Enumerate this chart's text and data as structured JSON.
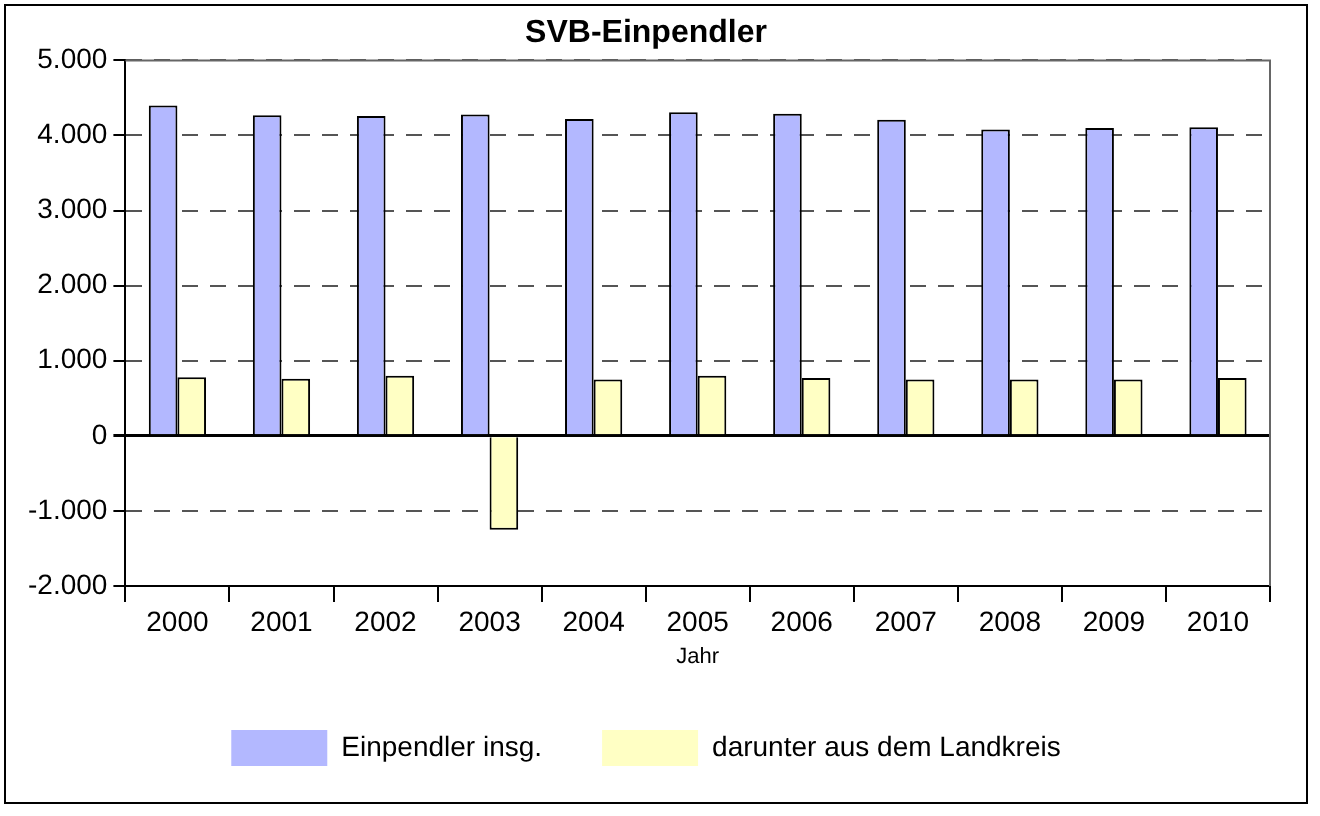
{
  "chart_data": {
    "type": "bar",
    "title": "SVB-Einpendler",
    "xlabel": "Jahr",
    "categories": [
      "2000",
      "2001",
      "2002",
      "2003",
      "2004",
      "2005",
      "2006",
      "2007",
      "2008",
      "2009",
      "2010"
    ],
    "series": [
      {
        "name": "Einpendler insg.",
        "color": "#b3b8ff",
        "values": [
          4400,
          4270,
          4260,
          4280,
          4220,
          4310,
          4290,
          4210,
          4080,
          4100,
          4110
        ]
      },
      {
        "name": "darunter aus dem Landkreis",
        "color": "#ffffc4",
        "values": [
          780,
          760,
          800,
          -1250,
          750,
          800,
          770,
          750,
          750,
          750,
          770
        ]
      }
    ],
    "ylim": [
      -2000,
      5000
    ],
    "yticks": [
      {
        "value": -2000,
        "label": "-2.000"
      },
      {
        "value": -1000,
        "label": "-1.000"
      },
      0,
      {
        "value": 1000,
        "label": "1.000"
      },
      {
        "value": 2000,
        "label": "2.000"
      },
      {
        "value": 3000,
        "label": "3.000"
      },
      {
        "value": 4000,
        "label": "4.000"
      },
      {
        "value": 5000,
        "label": "5.000"
      }
    ],
    "grid": "y",
    "legend": "bottom"
  }
}
